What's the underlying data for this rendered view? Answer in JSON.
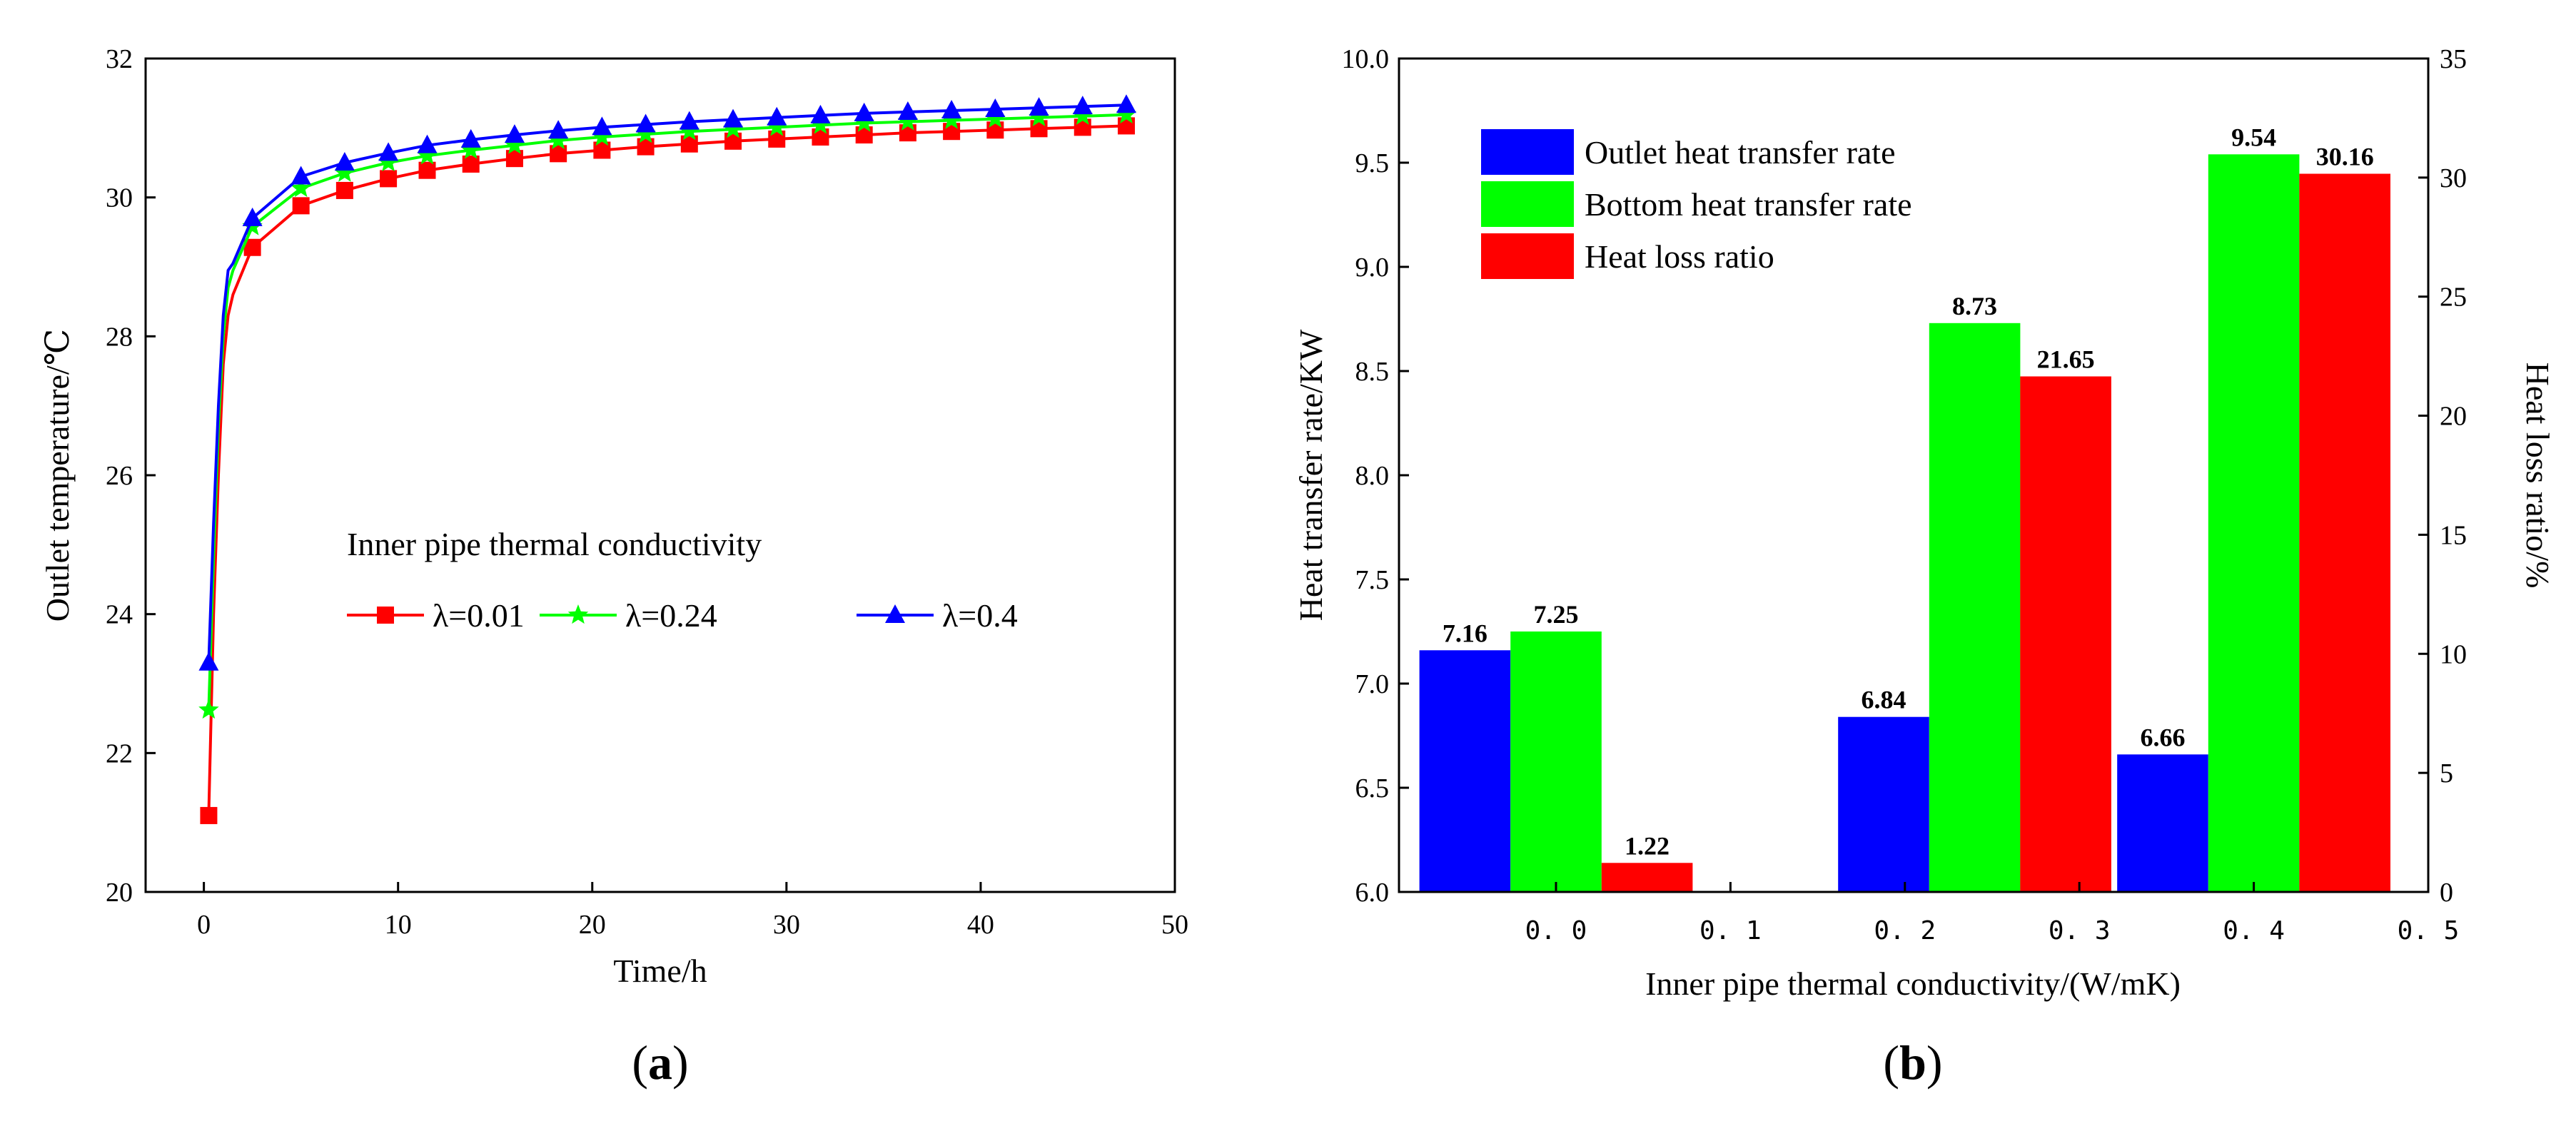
{
  "chart_data": [
    {
      "type": "line",
      "panel_label_prefix": "(",
      "panel_label_letter": "a",
      "panel_label_suffix": ")",
      "xlabel": "Time/h",
      "ylabel": "Outlet temperature/℃",
      "xlim": [
        -3,
        50
      ],
      "ylim": [
        20,
        32
      ],
      "xticks": [
        0,
        10,
        20,
        30,
        40,
        50
      ],
      "yticks": [
        20,
        22,
        24,
        26,
        28,
        30,
        32
      ],
      "legend_title": "Inner pipe thermal conductivity",
      "x": [
        0.25,
        0.5,
        0.75,
        1.0,
        1.25,
        1.5,
        2.5,
        5,
        7.25,
        9.5,
        11.5,
        13.75,
        16,
        18.25,
        20.5,
        22.75,
        25,
        27.25,
        29.5,
        31.75,
        34,
        36.25,
        38.5,
        40.75,
        43,
        45.25,
        47.5
      ],
      "series": [
        {
          "name": "λ=0.01",
          "color": "#ff0000",
          "marker": "square",
          "values": [
            21.1,
            24.0,
            26.0,
            27.6,
            28.3,
            28.6,
            29.28,
            29.88,
            30.1,
            30.27,
            30.39,
            30.48,
            30.56,
            30.63,
            30.68,
            30.73,
            30.77,
            30.81,
            30.84,
            30.87,
            30.9,
            30.93,
            30.95,
            30.97,
            30.99,
            31.01,
            31.03
          ]
        },
        {
          "name": "λ=0.24",
          "color": "#00ff00",
          "marker": "star",
          "values": [
            22.62,
            24.8,
            26.7,
            28.0,
            28.7,
            28.95,
            29.58,
            30.13,
            30.35,
            30.5,
            30.6,
            30.68,
            30.75,
            30.82,
            30.87,
            30.91,
            30.95,
            30.98,
            31.01,
            31.04,
            31.07,
            31.09,
            31.11,
            31.13,
            31.15,
            31.17,
            31.19
          ]
        },
        {
          "name": "λ=0.4",
          "color": "#0000ff",
          "marker": "triangle",
          "values": [
            23.3,
            25.3,
            27.0,
            28.3,
            28.95,
            29.05,
            29.7,
            30.3,
            30.5,
            30.64,
            30.75,
            30.83,
            30.9,
            30.96,
            31.01,
            31.05,
            31.09,
            31.12,
            31.15,
            31.18,
            31.21,
            31.23,
            31.25,
            31.27,
            31.29,
            31.31,
            31.33
          ]
        }
      ]
    },
    {
      "type": "bar",
      "panel_label_prefix": "(",
      "panel_label_letter": "b",
      "panel_label_suffix": ")",
      "xlabel": "Inner pipe thermal conductivity/(W/mK)",
      "ylabel": "Heat transfer rate/KW",
      "ylabel_right": "Heat loss ratio/%",
      "xlim": [
        -0.09,
        0.5
      ],
      "ylim": [
        6.0,
        10.0
      ],
      "ylim_right": [
        0,
        35
      ],
      "xticks": [
        "0. 0",
        "0. 1",
        "0. 2",
        "0. 3",
        "0. 4",
        "0. 5"
      ],
      "xtick_values": [
        0.0,
        0.1,
        0.2,
        0.3,
        0.4,
        0.5
      ],
      "yticks": [
        "6.0",
        "6.5",
        "7.0",
        "7.5",
        "8.0",
        "8.5",
        "9.0",
        "9.5",
        "10.0"
      ],
      "yticks_right": [
        "0",
        "5",
        "10",
        "15",
        "20",
        "25",
        "30",
        "35"
      ],
      "categories": [
        0.01,
        0.24,
        0.4
      ],
      "group_positions": [
        0.0,
        0.24,
        0.4
      ],
      "series": [
        {
          "name": "Outlet heat transfer rate",
          "color": "#0000ff",
          "axis": "left",
          "values": [
            7.16,
            6.84,
            6.66
          ],
          "labels": [
            "7.16",
            "6.84",
            "6.66"
          ]
        },
        {
          "name": "Bottom heat transfer rate",
          "color": "#00ff00",
          "axis": "left",
          "values": [
            7.25,
            8.73,
            9.54
          ],
          "labels": [
            "7.25",
            "8.73",
            "9.54"
          ]
        },
        {
          "name": "Heat loss ratio",
          "color": "#ff0000",
          "axis": "right",
          "values": [
            1.22,
            21.65,
            30.16
          ],
          "labels": [
            "1.22",
            "21.65",
            "30.16"
          ]
        }
      ]
    }
  ]
}
